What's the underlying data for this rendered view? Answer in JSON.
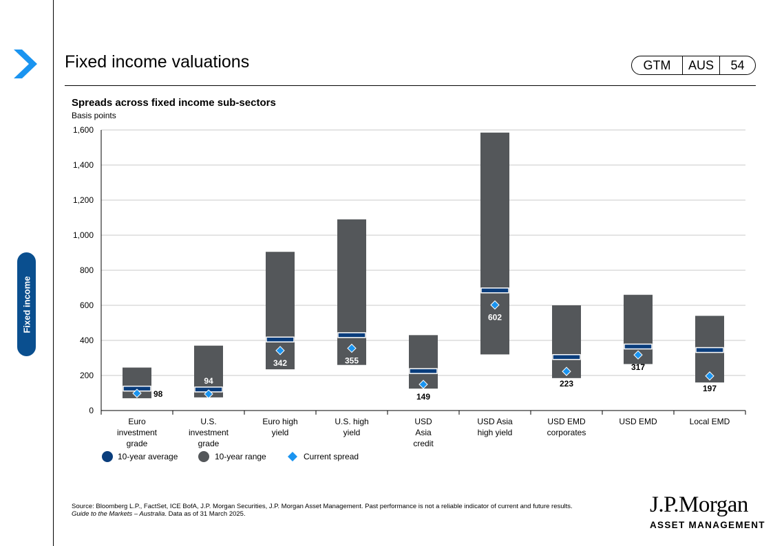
{
  "page": {
    "title": "Fixed income valuations",
    "badge": {
      "left": "GTM",
      "middle": "AUS",
      "page_number": "54"
    },
    "side_tab": "Fixed income",
    "source_line1": "Source: Bloomberg L.P., FactSet, ICE  BofA, J.P. Morgan Securities, J.P. Morgan Asset Management. Past performance is not a reliable indicator of current and future results.",
    "source_guide": "Guide to the Markets – Australia",
    "source_date": ". Data as of 31 March 2025.",
    "logo_top": "J.P.Morgan",
    "logo_bottom": "ASSET MANAGEMENT"
  },
  "colors": {
    "range": "#54575a",
    "average": "#0a3d7c",
    "current": "#1a94f0",
    "tab": "#0a4f8f"
  },
  "chart_data": {
    "type": "bar",
    "title": "Spreads across fixed income sub-sectors",
    "ylabel": "Basis points",
    "ylim": [
      0,
      1600
    ],
    "yticks": [
      "0",
      "200",
      "400",
      "600",
      "800",
      "1,000",
      "1,200",
      "1,400",
      "1,600"
    ],
    "grid": true,
    "categories": [
      [
        "Euro",
        "investment",
        "grade"
      ],
      [
        "U.S.",
        "investment",
        "grade"
      ],
      [
        "Euro high",
        "yield"
      ],
      [
        "U.S. high",
        "yield"
      ],
      [
        "USD",
        "Asia",
        "credit"
      ],
      [
        "USD Asia",
        "high yield"
      ],
      [
        "USD EMD",
        "corporates"
      ],
      [
        "USD EMD"
      ],
      [
        "Local EMD"
      ]
    ],
    "range_low": [
      70,
      75,
      235,
      260,
      125,
      320,
      185,
      265,
      160
    ],
    "range_high": [
      245,
      370,
      905,
      1090,
      430,
      1585,
      600,
      660,
      540
    ],
    "average": [
      125,
      120,
      405,
      430,
      225,
      685,
      305,
      365,
      345
    ],
    "current": [
      98,
      94,
      342,
      355,
      149,
      602,
      223,
      317,
      197
    ],
    "current_labels": [
      "98",
      "94",
      "342",
      "355",
      "149",
      "602",
      "223",
      "317",
      "197"
    ],
    "legend": [
      "10-year average",
      "10-year range",
      "Current  spread"
    ]
  }
}
